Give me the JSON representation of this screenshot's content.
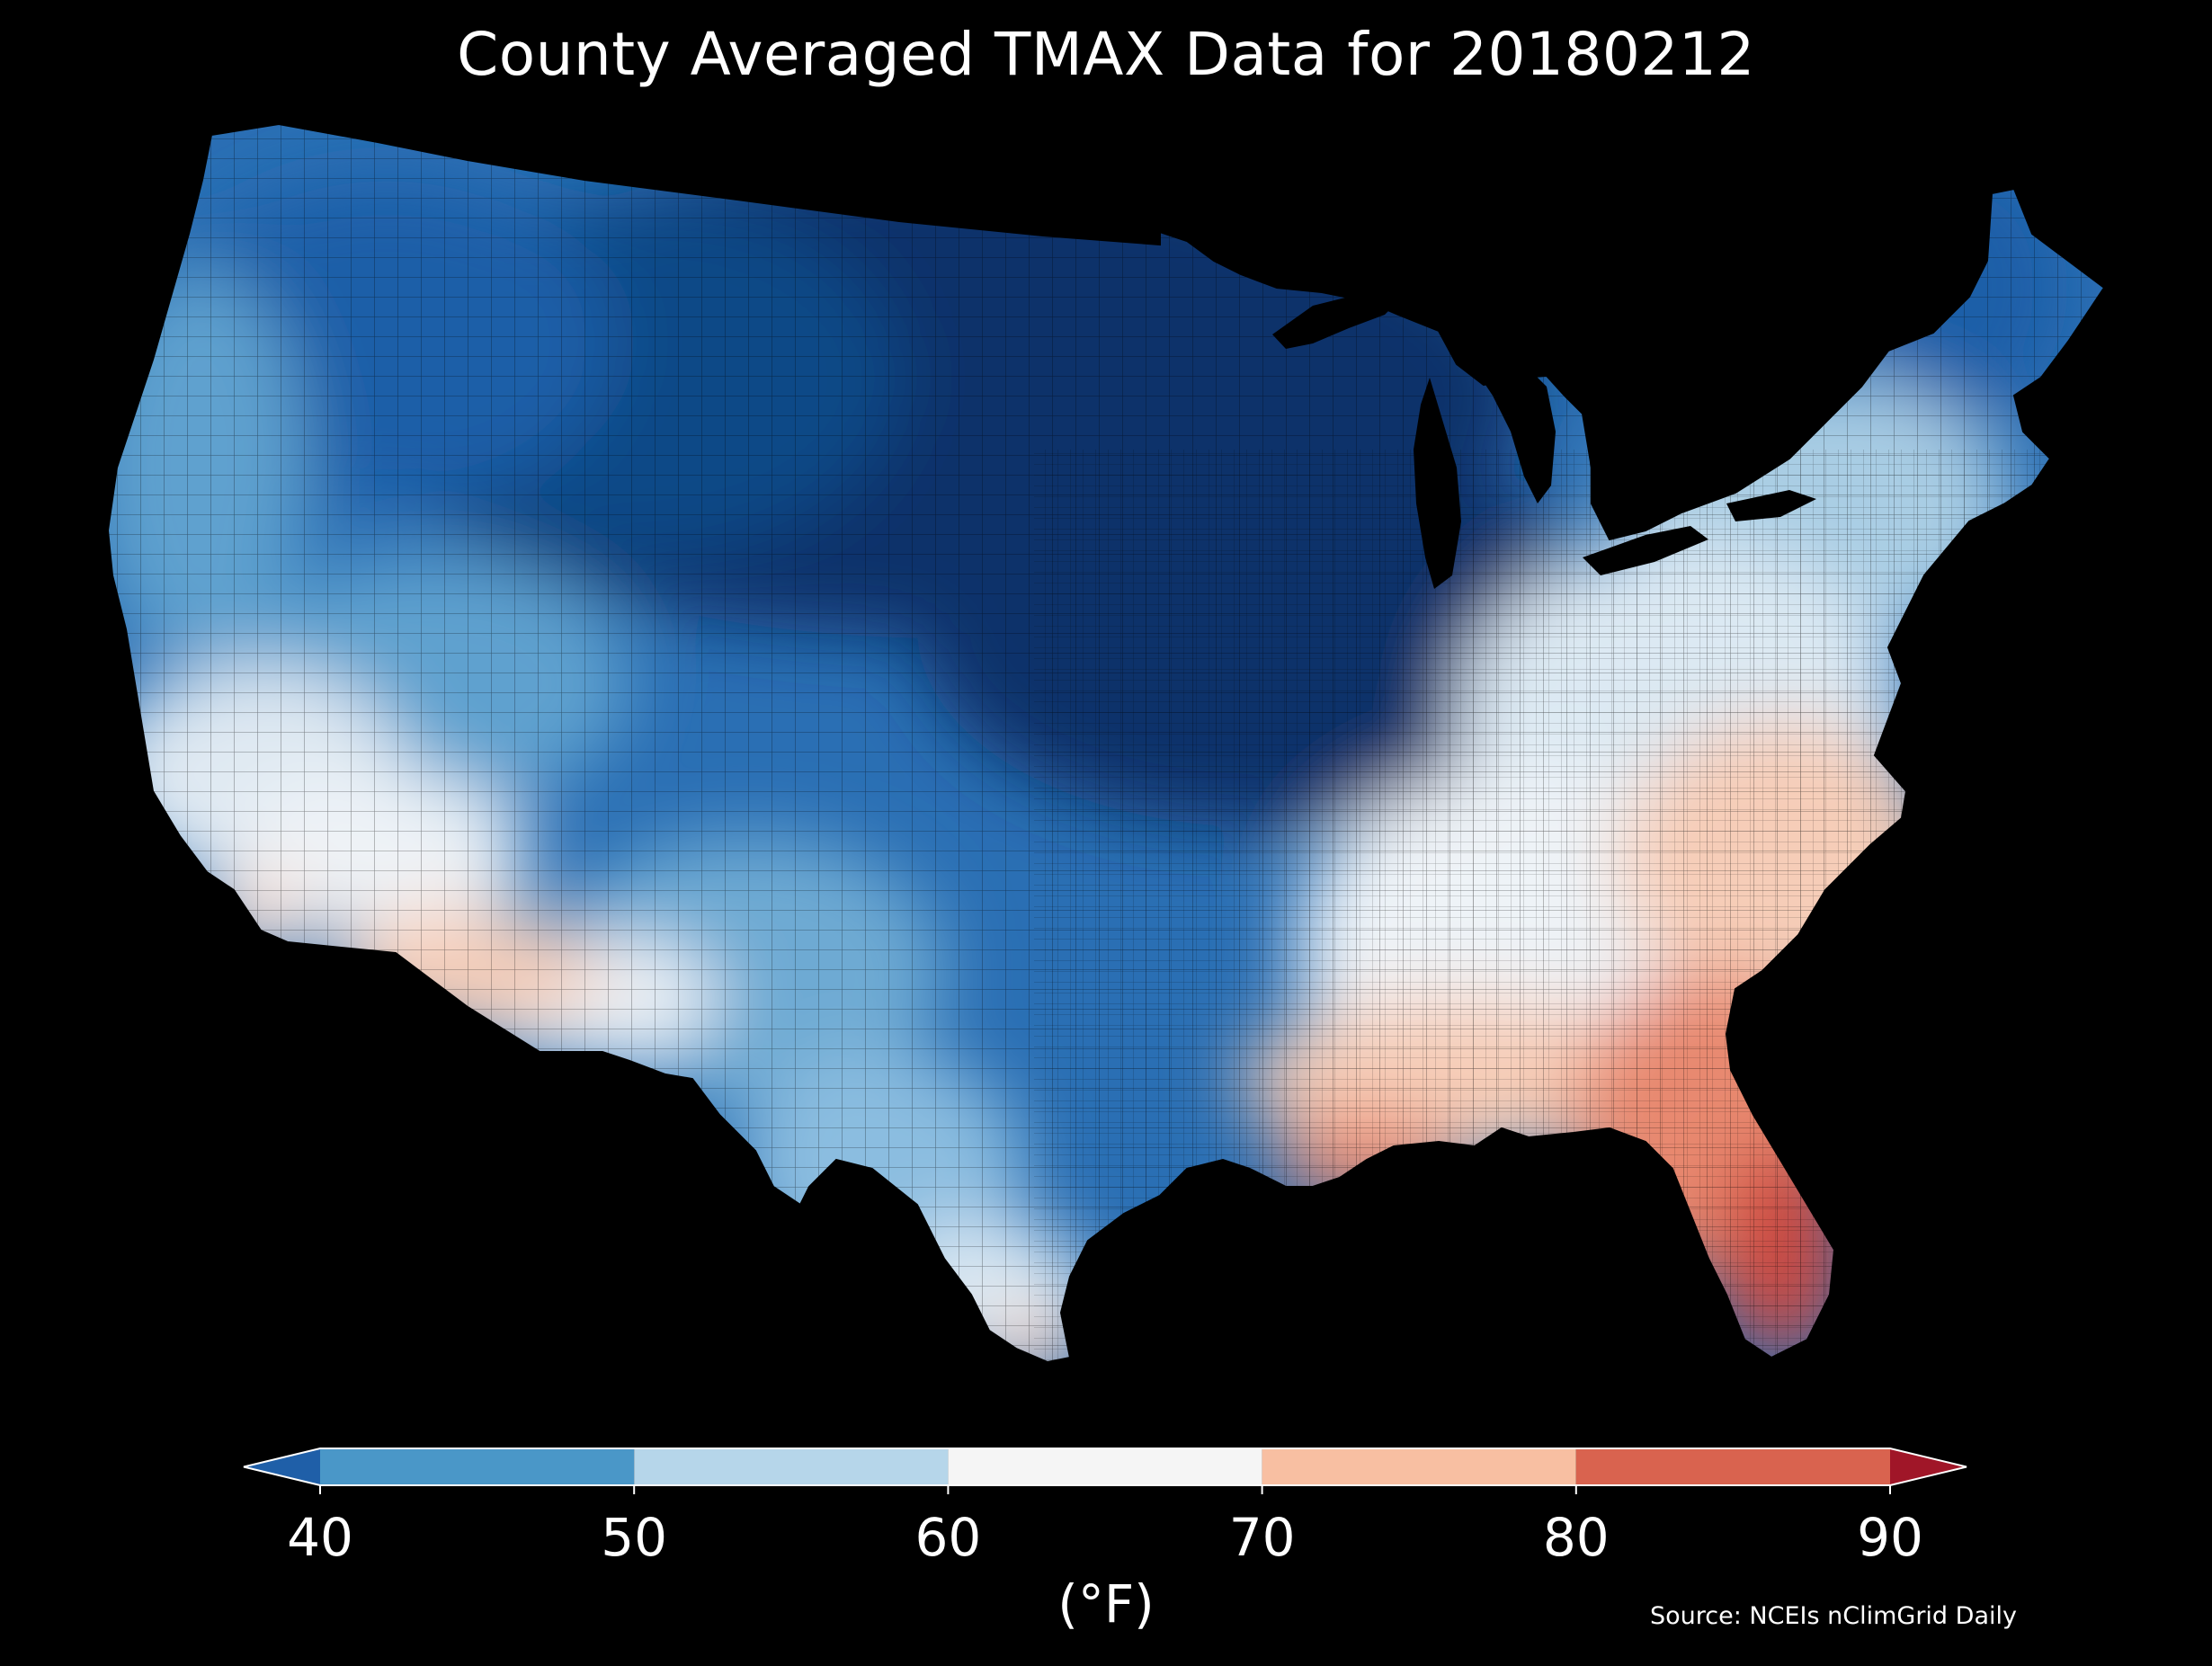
{
  "title": "County Averaged TMAX Data for 20180212",
  "colorbar": {
    "unit": "(°F)",
    "ticks": [
      "40",
      "50",
      "60",
      "70",
      "80",
      "90"
    ],
    "bins": [
      {
        "min": 30,
        "max": 40,
        "color": "#1f5fa8",
        "label": "<40 (extend)"
      },
      {
        "min": 40,
        "max": 50,
        "color": "#4a97c8"
      },
      {
        "min": 50,
        "max": 60,
        "color": "#b6d6ea"
      },
      {
        "min": 60,
        "max": 70,
        "color": "#f5f5f5"
      },
      {
        "min": 70,
        "max": 80,
        "color": "#f8bfa2"
      },
      {
        "min": 80,
        "max": 90,
        "color": "#d9634f"
      },
      {
        "min": 90,
        "max": 100,
        "color": "#a01628",
        "label": ">90 (extend)"
      }
    ],
    "extend": "both"
  },
  "source": "Source: NCEIs nClimGrid Daily",
  "map_data": {
    "type": "choropleth",
    "region": "CONUS counties",
    "variable": "TMAX",
    "date": "20180212",
    "colors": {
      "coldest": "#08306b",
      "very_cold": "#0f4a87",
      "cold": "#2a6fb4",
      "cool": "#5ea1cf",
      "mild_cool": "#a9cde4",
      "neutral": "#eef3f7",
      "warm": "#f6cdb8",
      "hot": "#e8896f",
      "hottest": "#cd4a3f"
    }
  }
}
